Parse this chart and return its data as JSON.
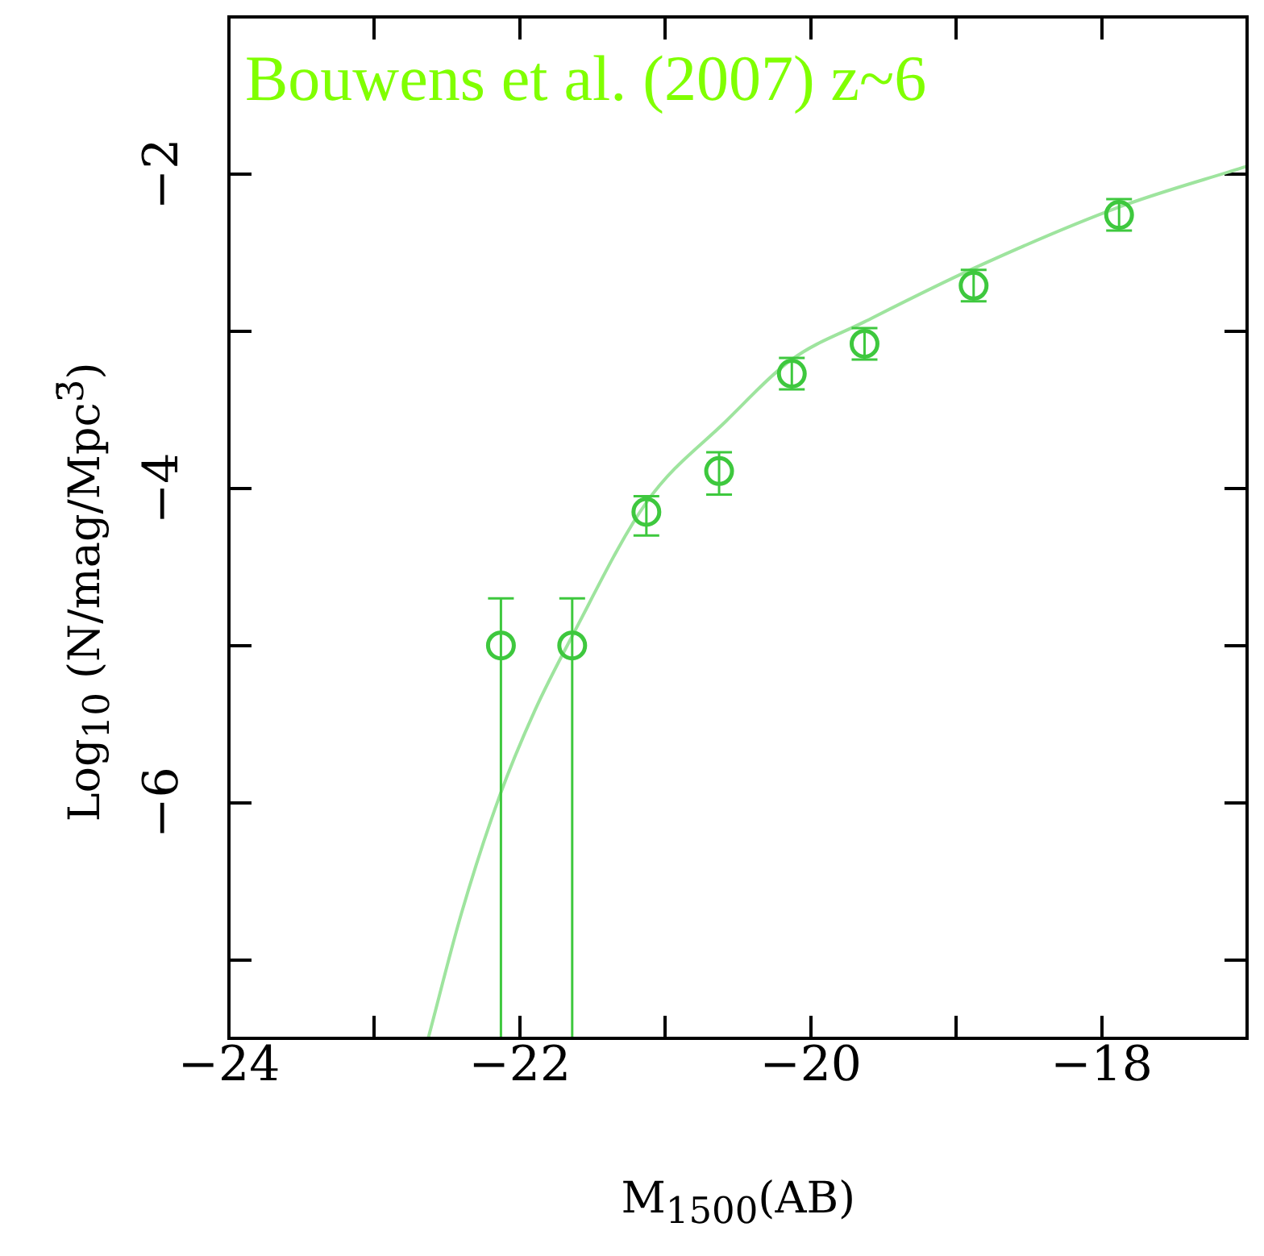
{
  "chart_data": {
    "type": "scatter",
    "xlabel": "M$_{1500}$(AB)",
    "ylabel": "Log$_{10}$ (N/mag/Mpc$^{3̄}$)",
    "annotations": [
      "Bouwens et al. (2007) z~6"
    ],
    "xlim": [
      -24,
      -17
    ],
    "ylim": [
      -7.5,
      -1
    ],
    "xticks": [
      -24,
      {
        "value": -23,
        "label": null
      },
      -22,
      {
        "value": -21,
        "label": null
      },
      -20,
      {
        "value": -19,
        "label": null
      },
      -18
    ],
    "yticks": [
      {
        "value": -7,
        "label": null
      },
      -6,
      {
        "value": -5,
        "label": null
      },
      -4,
      {
        "value": -3,
        "label": null
      },
      -2
    ],
    "marker": "circle",
    "series": [
      {
        "color": "#3ec83e",
        "x": [
          -22.13,
          -21.64,
          -21.13,
          -20.63,
          -20.13,
          -19.63,
          -18.88,
          -17.88
        ],
        "values": [
          -5.0,
          -5.0,
          -4.15,
          -3.89,
          -3.27,
          -3.08,
          -2.71,
          -2.26
        ],
        "errors": [
          [
            -7.5,
            -4.7
          ],
          [
            -7.5,
            -4.7
          ],
          [
            -4.3,
            -4.05
          ],
          [
            -4.04,
            -3.77
          ],
          0.1,
          0.1,
          0.1,
          0.1
        ]
      },
      {
        "type": "line",
        "color": "#9ee49e",
        "marker": "none",
        "x": [
          -22.63,
          -22.4,
          -22.14,
          -21.9,
          -21.64,
          -21.13,
          -20.58,
          -20.13,
          -19.63,
          -18.88,
          -17.88,
          -17.0
        ],
        "values": [
          -7.5,
          -6.7,
          -5.96,
          -5.42,
          -4.94,
          -4.09,
          -3.57,
          -3.18,
          -2.94,
          -2.6,
          -2.21,
          -1.95
        ]
      }
    ]
  }
}
